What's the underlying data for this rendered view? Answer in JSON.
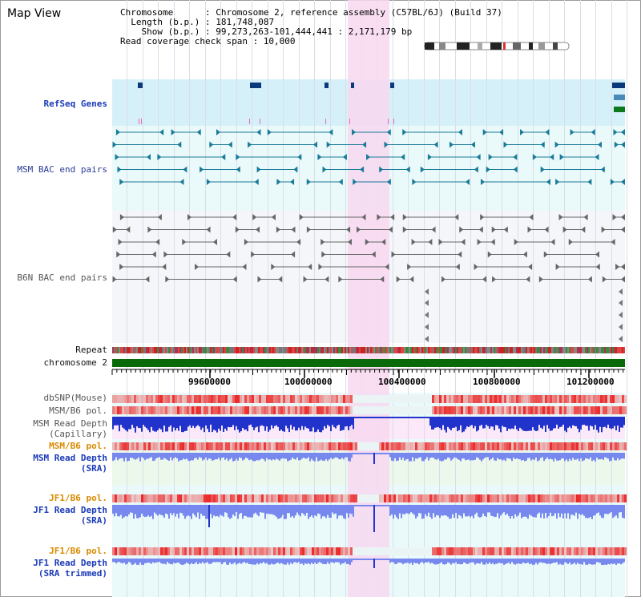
{
  "title": "Map View",
  "info": {
    "chromosome_key": "Chromosome",
    "chromosome_val": ": Chromosome 2, reference assembly (C57BL/6J) (Build 37)",
    "length_key": "Length (b.p.)",
    "length_val": ": 181,748,087",
    "show_key": "Show (b.p.)",
    "show_val": ": 99,273,263-101,444,441 : 2,171,179 bp",
    "read_cov": "Read coverage check span : 10,000"
  },
  "tracks": {
    "refseq": "RefSeq Genes",
    "msm_bac": "MSM BAC end pairs",
    "b6n_bac": "B6N BAC end pairs",
    "repeat": "Repeat",
    "chromosome": "chromosome 2",
    "dbsnp": "dbSNP(Mouse)",
    "msm_b6_pol_1": "MSM/B6 pol.",
    "msm_read_depth_cap_1": "MSM Read Depth",
    "msm_read_depth_cap_2": "(Capillary)",
    "msm_b6_pol_2": "MSM/B6 pol.",
    "msm_read_depth_sra_1": "MSM Read Depth",
    "msm_read_depth_sra_2": "(SRA)",
    "jf1_b6_pol_1": "JF1/B6 pol.",
    "jf1_read_depth_sra_1": "JF1 Read Depth",
    "jf1_read_depth_sra_2": "(SRA)",
    "jf1_b6_pol_2": "JF1/B6 pol.",
    "jf1_read_depth_trim_1": "JF1 Read Depth",
    "jf1_read_depth_trim_2": "(SRA trimmed)"
  },
  "scale_ticks": [
    "99600000",
    "100000000",
    "100400000",
    "100800000",
    "101200000"
  ],
  "colors": {
    "refseq_bg": "#d6f0fa",
    "bac_bg": "#eafafa",
    "highlight": "#f8d8f0",
    "msm_gene": "#1a7a9a",
    "b6n_gene": "#666666",
    "chromosome_bar": "#0a6a0a",
    "depth_blue": "#2233cc",
    "depth_light": "#7788ee"
  }
}
